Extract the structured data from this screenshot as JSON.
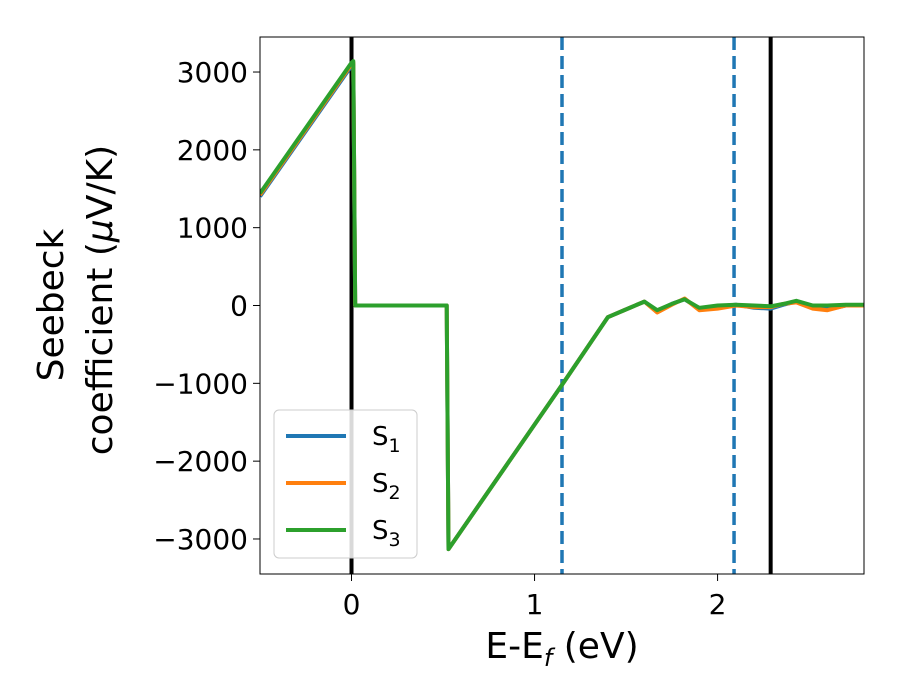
{
  "chart_data": {
    "type": "line",
    "xlabel": {
      "main": "E-E",
      "sub": "f",
      "unit": " (eV)"
    },
    "ylabel": {
      "line1": "Seebeck",
      "line2_main": "coefficient  (",
      "line2_mu": "μ",
      "line2_unit": "V/K)"
    },
    "xlim": [
      -0.5,
      2.8
    ],
    "ylim": [
      -3450,
      3450
    ],
    "xticks": [
      0,
      1,
      2
    ],
    "xtick_labels": [
      "0",
      "1",
      "2"
    ],
    "yticks": [
      3000,
      2000,
      1000,
      0,
      -1000,
      -2000,
      -3000
    ],
    "ytick_labels": [
      "3000",
      "2000",
      "1000",
      "0",
      "−1000",
      "−2000",
      "−3000"
    ],
    "grid": false,
    "legend_position": "lower-left",
    "vlines": [
      {
        "x": 0.0,
        "style": "solid",
        "color": "#000000"
      },
      {
        "x": 2.29,
        "style": "solid",
        "color": "#000000"
      },
      {
        "x": 1.15,
        "style": "dashed",
        "color": "#1f77b4"
      },
      {
        "x": 2.09,
        "style": "dashed",
        "color": "#1f77b4"
      }
    ],
    "series": [
      {
        "name": "S",
        "sub": "1",
        "color": "#1f77b4",
        "x": [
          -0.5,
          0.0,
          0.01,
          0.02,
          0.52,
          0.53,
          1.15,
          1.4,
          1.5,
          1.6,
          1.67,
          1.75,
          1.82,
          1.9,
          2.0,
          2.1,
          2.2,
          2.29,
          2.36,
          2.43,
          2.52,
          2.6,
          2.7,
          2.8
        ],
        "y": [
          1400,
          3080,
          3100,
          0,
          0,
          -3130,
          -1020,
          -150,
          -50,
          50,
          -70,
          20,
          80,
          -40,
          -10,
          10,
          -30,
          -40,
          10,
          50,
          -20,
          -50,
          0,
          0
        ]
      },
      {
        "name": "S",
        "sub": "2",
        "color": "#ff7f0e",
        "x": [
          -0.5,
          0.0,
          0.01,
          0.02,
          0.52,
          0.53,
          1.15,
          1.4,
          1.5,
          1.6,
          1.67,
          1.75,
          1.82,
          1.9,
          2.0,
          2.1,
          2.2,
          2.29,
          2.36,
          2.43,
          2.52,
          2.6,
          2.7,
          2.8
        ],
        "y": [
          1420,
          3100,
          3120,
          0,
          0,
          -3130,
          -1020,
          -150,
          -50,
          50,
          -90,
          10,
          90,
          -60,
          -40,
          0,
          -20,
          -20,
          20,
          40,
          -40,
          -60,
          0,
          0
        ]
      },
      {
        "name": "S",
        "sub": "3",
        "color": "#2ca02c",
        "x": [
          -0.5,
          0.0,
          0.01,
          0.02,
          0.52,
          0.53,
          1.15,
          1.4,
          1.5,
          1.6,
          1.67,
          1.75,
          1.82,
          1.9,
          2.0,
          2.1,
          2.2,
          2.29,
          2.36,
          2.43,
          2.52,
          2.6,
          2.7,
          2.8
        ],
        "y": [
          1440,
          3120,
          3140,
          0,
          0,
          -3130,
          -1020,
          -150,
          -50,
          50,
          -60,
          20,
          80,
          -30,
          0,
          10,
          0,
          -10,
          20,
          60,
          0,
          0,
          10,
          10
        ]
      }
    ]
  }
}
